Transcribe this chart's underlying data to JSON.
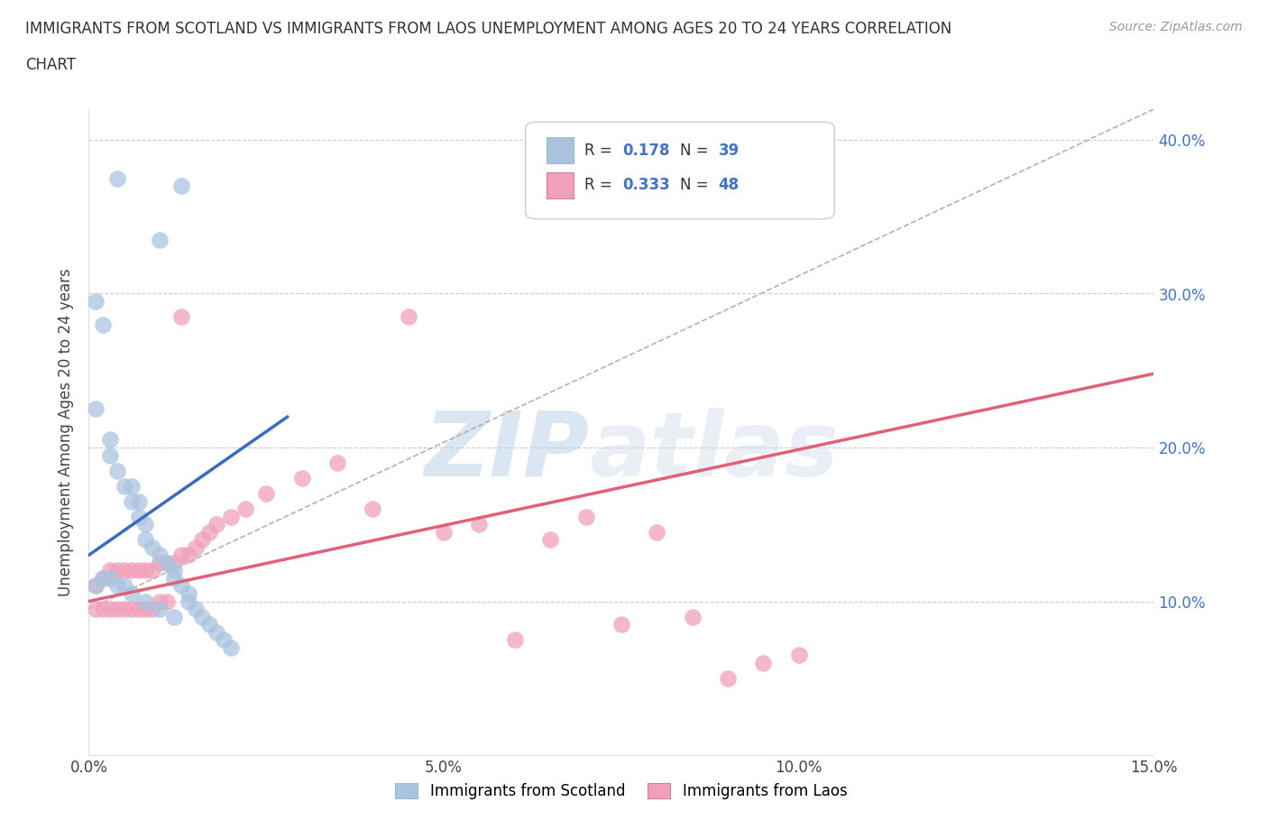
{
  "title_line1": "IMMIGRANTS FROM SCOTLAND VS IMMIGRANTS FROM LAOS UNEMPLOYMENT AMONG AGES 20 TO 24 YEARS CORRELATION",
  "title_line2": "CHART",
  "source": "Source: ZipAtlas.com",
  "ylabel": "Unemployment Among Ages 20 to 24 years",
  "xlim": [
    0.0,
    0.15
  ],
  "ylim": [
    0.0,
    0.42
  ],
  "xticklabels": [
    "0.0%",
    "5.0%",
    "10.0%",
    "15.0%"
  ],
  "xtick_vals": [
    0.0,
    0.05,
    0.1,
    0.15
  ],
  "ytick_vals": [
    0.1,
    0.2,
    0.3,
    0.4
  ],
  "yticklabels_right": [
    "10.0%",
    "20.0%",
    "30.0%",
    "40.0%"
  ],
  "scotland_R": "0.178",
  "scotland_N": "39",
  "laos_R": "0.333",
  "laos_N": "48",
  "scotland_color": "#aac4e0",
  "laos_color": "#f0a0b8",
  "scotland_line_color": "#3a6bbf",
  "laos_line_color": "#e0607a",
  "grid_color": "#cccccc",
  "right_tick_color": "#4472c4",
  "watermark1": "ZIP",
  "watermark2": "atlas",
  "legend_box_color": "#e8f0f8",
  "scotland_pts_x": [
    0.004,
    0.013,
    0.01,
    0.001,
    0.002,
    0.001,
    0.003,
    0.003,
    0.004,
    0.005,
    0.006,
    0.006,
    0.007,
    0.007,
    0.008,
    0.008,
    0.009,
    0.01,
    0.011,
    0.012,
    0.012,
    0.013,
    0.014,
    0.014,
    0.015,
    0.016,
    0.017,
    0.018,
    0.019,
    0.02,
    0.002,
    0.003,
    0.004,
    0.005,
    0.006,
    0.008,
    0.01,
    0.012,
    0.001
  ],
  "scotland_pts_y": [
    0.375,
    0.37,
    0.335,
    0.295,
    0.28,
    0.225,
    0.205,
    0.195,
    0.185,
    0.175,
    0.175,
    0.165,
    0.165,
    0.155,
    0.15,
    0.14,
    0.135,
    0.13,
    0.125,
    0.12,
    0.115,
    0.11,
    0.105,
    0.1,
    0.095,
    0.09,
    0.085,
    0.08,
    0.075,
    0.07,
    0.115,
    0.115,
    0.11,
    0.11,
    0.105,
    0.1,
    0.095,
    0.09,
    0.11
  ],
  "laos_pts_x": [
    0.001,
    0.001,
    0.002,
    0.002,
    0.003,
    0.003,
    0.004,
    0.004,
    0.005,
    0.005,
    0.006,
    0.006,
    0.007,
    0.007,
    0.008,
    0.008,
    0.009,
    0.009,
    0.01,
    0.01,
    0.011,
    0.011,
    0.012,
    0.013,
    0.014,
    0.015,
    0.016,
    0.017,
    0.018,
    0.02,
    0.022,
    0.025,
    0.03,
    0.035,
    0.04,
    0.045,
    0.05,
    0.055,
    0.06,
    0.065,
    0.07,
    0.075,
    0.08,
    0.085,
    0.09,
    0.095,
    0.1,
    0.013
  ],
  "laos_pts_y": [
    0.11,
    0.095,
    0.115,
    0.095,
    0.12,
    0.095,
    0.12,
    0.095,
    0.12,
    0.095,
    0.12,
    0.095,
    0.12,
    0.095,
    0.12,
    0.095,
    0.12,
    0.095,
    0.125,
    0.1,
    0.125,
    0.1,
    0.125,
    0.13,
    0.13,
    0.135,
    0.14,
    0.145,
    0.15,
    0.155,
    0.16,
    0.17,
    0.18,
    0.19,
    0.16,
    0.285,
    0.145,
    0.15,
    0.075,
    0.14,
    0.155,
    0.085,
    0.145,
    0.09,
    0.05,
    0.06,
    0.065,
    0.285
  ],
  "scot_line_x": [
    0.0,
    0.028
  ],
  "scot_line_y": [
    0.13,
    0.22
  ],
  "laos_line_x": [
    0.0,
    0.15
  ],
  "laos_line_y": [
    0.1,
    0.248
  ],
  "dash_line_x": [
    0.0,
    0.15
  ],
  "dash_line_y": [
    0.095,
    0.42
  ]
}
